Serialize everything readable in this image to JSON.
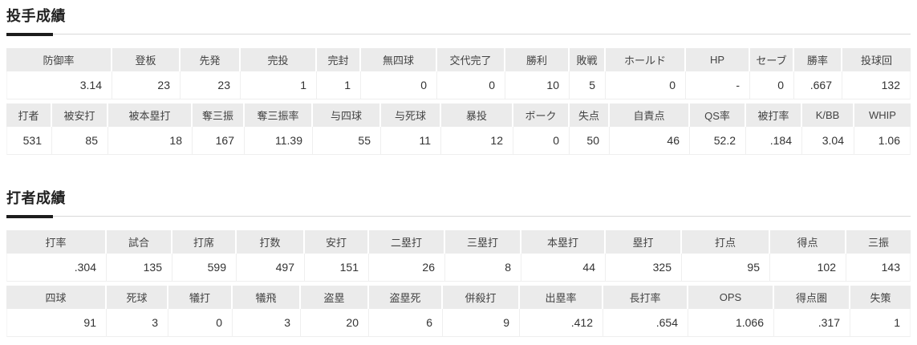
{
  "colors": {
    "title_accent": "#1c1c1c",
    "header_bg": "#ebebeb",
    "rule_line": "#d9d9d9"
  },
  "sections": [
    {
      "id": "pitching",
      "title": "投手成績",
      "tables": [
        {
          "headers": [
            "防御率",
            "登板",
            "先発",
            "完投",
            "完封",
            "無四球",
            "交代完了",
            "勝利",
            "敗戦",
            "ホールド",
            "HP",
            "セーブ",
            "勝率",
            "投球回"
          ],
          "values": [
            "3.14",
            "23",
            "23",
            "1",
            "1",
            "0",
            "0",
            "10",
            "5",
            "0",
            "-",
            "0",
            ".667",
            "132"
          ]
        },
        {
          "headers": [
            "打者",
            "被安打",
            "被本塁打",
            "奪三振",
            "奪三振率",
            "与四球",
            "与死球",
            "暴投",
            "ボーク",
            "失点",
            "自責点",
            "QS率",
            "被打率",
            "K/BB",
            "WHIP"
          ],
          "values": [
            "531",
            "85",
            "18",
            "167",
            "11.39",
            "55",
            "11",
            "12",
            "0",
            "50",
            "46",
            "52.2",
            ".184",
            "3.04",
            "1.06"
          ]
        }
      ]
    },
    {
      "id": "batting",
      "title": "打者成績",
      "tables": [
        {
          "headers": [
            "打率",
            "試合",
            "打席",
            "打数",
            "安打",
            "二塁打",
            "三塁打",
            "本塁打",
            "塁打",
            "打点",
            "得点",
            "三振"
          ],
          "values": [
            ".304",
            "135",
            "599",
            "497",
            "151",
            "26",
            "8",
            "44",
            "325",
            "95",
            "102",
            "143"
          ]
        },
        {
          "headers": [
            "四球",
            "死球",
            "犠打",
            "犠飛",
            "盗塁",
            "盗塁死",
            "併殺打",
            "出塁率",
            "長打率",
            "OPS",
            "得点圏",
            "失策"
          ],
          "values": [
            "91",
            "3",
            "0",
            "3",
            "20",
            "6",
            "9",
            ".412",
            ".654",
            "1.066",
            ".317",
            "1"
          ]
        }
      ]
    }
  ]
}
